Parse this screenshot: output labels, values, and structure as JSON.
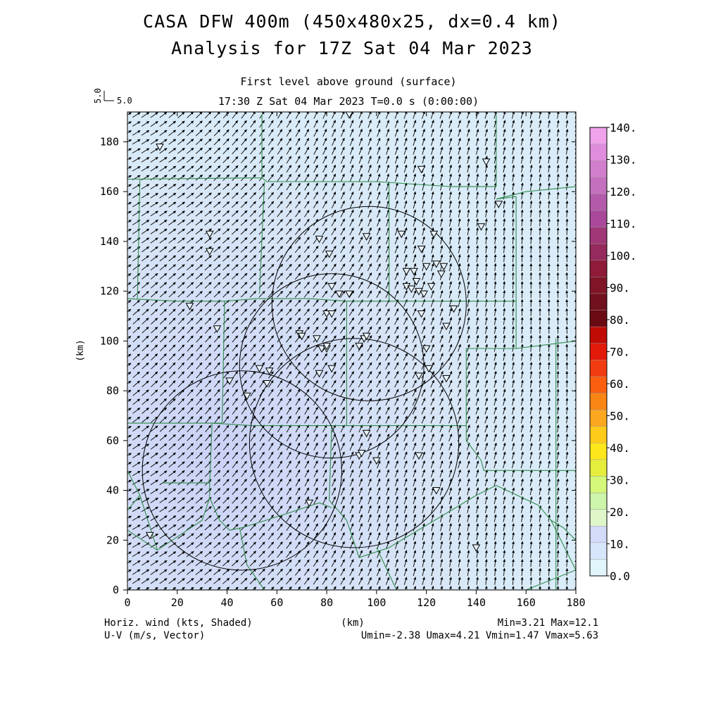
{
  "header": {
    "title_line1": "CASA DFW 400m (450x480x25, dx=0.4 km)",
    "title_line2": "Analysis for 17Z Sat 04 Mar 2023",
    "subtitle_line1": "First level above ground (surface)",
    "subtitle_line2": "17:30 Z Sat 04 Mar 2023    T=0.0 s (0:00:00)"
  },
  "scale_key": {
    "label_vertical": "5.0",
    "label_horizontal": "5.0"
  },
  "footer": {
    "shaded_label": "Horiz. wind (kts, Shaded)",
    "vector_label": "U-V (m/s, Vector)",
    "x_unit": "(km)",
    "minmax": "Min=3.21 Max=12.1",
    "uv_range": "Umin=-2.38 Umax=4.21 Vmin=1.47 Vmax=5.63"
  },
  "chart_data": {
    "type": "heatmap",
    "xlabel": "",
    "ylabel": "(km)",
    "xlim": [
      0,
      180
    ],
    "ylim": [
      0,
      192
    ],
    "x_ticks": [
      "0",
      "20",
      "40",
      "60",
      "80",
      "100",
      "120",
      "140",
      "160",
      "180"
    ],
    "y_ticks": [
      "0",
      "20",
      "40",
      "60",
      "80",
      "100",
      "120",
      "140",
      "160",
      "180"
    ],
    "colorbar": {
      "tick_labels": [
        "0.0",
        "10.",
        "20.",
        "30.",
        "40.",
        "50.",
        "60.",
        "70.",
        "80.",
        "90.",
        "100.",
        "110.",
        "120.",
        "130.",
        "140."
      ],
      "colors": [
        "#e2f5fb",
        "#d7e6fb",
        "#d3dbf8",
        "#dff6c9",
        "#cdf5ab",
        "#d5f77a",
        "#e6ee3d",
        "#fde71c",
        "#fecb1a",
        "#fca81f",
        "#fa8414",
        "#f95f0f",
        "#f13b10",
        "#e11a0a",
        "#c10b05",
        "#6a0a12",
        "#71101e",
        "#801528",
        "#8f1a3a",
        "#952a5c",
        "#a03777",
        "#a9489a",
        "#b35aaa",
        "#c56fbf",
        "#d17ecd",
        "#e08ddd",
        "#f0a2ea"
      ]
    },
    "field_stats": {
      "min": 3.21,
      "max": 12.1,
      "umin": -2.38,
      "umax": 4.21,
      "vmin": 1.47,
      "vmax": 5.63
    },
    "field_colors": {
      "low": "#d7e5f6",
      "high": "#cbd2f6",
      "background": "#d9ecf8"
    },
    "radar_rings_km": [
      {
        "x": 97,
        "y": 115,
        "r": 39
      },
      {
        "x": 82,
        "y": 90,
        "r": 37
      },
      {
        "x": 91,
        "y": 59,
        "r": 42
      },
      {
        "x": 46,
        "y": 48,
        "r": 40
      }
    ],
    "boundary_color": "#2f8a4a",
    "county_boundaries_km": [
      [
        [
          0,
          165
        ],
        [
          52,
          165.5
        ],
        [
          54,
          165.5
        ],
        [
          54,
          191
        ]
      ],
      [
        [
          54,
          165.5
        ],
        [
          56,
          164
        ],
        [
          100,
          164
        ],
        [
          130,
          162
        ],
        [
          148,
          162
        ],
        [
          148,
          191
        ]
      ],
      [
        [
          5,
          165
        ],
        [
          4,
          117
        ]
      ],
      [
        [
          0,
          117
        ],
        [
          20,
          116
        ],
        [
          39,
          116
        ],
        [
          38,
          67
        ],
        [
          0,
          67
        ]
      ],
      [
        [
          39,
          116
        ],
        [
          52,
          117
        ],
        [
          73,
          117
        ],
        [
          88,
          116
        ],
        [
          120,
          116
        ],
        [
          156,
          116
        ],
        [
          156,
          97
        ],
        [
          136,
          97
        ],
        [
          136,
          66
        ],
        [
          120,
          66
        ],
        [
          80,
          66
        ],
        [
          50,
          66
        ],
        [
          34,
          67
        ]
      ],
      [
        [
          55,
          164
        ],
        [
          53,
          119
        ]
      ],
      [
        [
          105,
          164
        ],
        [
          105,
          116
        ]
      ],
      [
        [
          88,
          116
        ],
        [
          88,
          66
        ]
      ],
      [
        [
          156,
          116
        ],
        [
          156,
          158
        ],
        [
          148,
          157
        ],
        [
          160,
          160
        ],
        [
          180,
          162
        ]
      ],
      [
        [
          156,
          97
        ],
        [
          180,
          100
        ]
      ],
      [
        [
          136,
          66
        ],
        [
          136,
          60
        ],
        [
          142,
          52
        ],
        [
          143,
          48
        ],
        [
          180,
          48
        ]
      ],
      [
        [
          34,
          67
        ],
        [
          33,
          43
        ],
        [
          22,
          43
        ],
        [
          14,
          43
        ]
      ],
      [
        [
          33,
          43
        ],
        [
          33,
          37
        ],
        [
          37,
          28
        ],
        [
          41,
          24
        ],
        [
          46,
          25
        ],
        [
          62,
          30
        ],
        [
          77,
          35
        ],
        [
          82,
          33
        ]
      ],
      [
        [
          82,
          66
        ],
        [
          81,
          36
        ],
        [
          88,
          28
        ],
        [
          93,
          13
        ],
        [
          105,
          17
        ],
        [
          140,
          38
        ],
        [
          148,
          42
        ],
        [
          165,
          34
        ],
        [
          170,
          28
        ],
        [
          175,
          25
        ],
        [
          180,
          20
        ]
      ],
      [
        [
          0,
          24
        ],
        [
          12,
          16
        ],
        [
          30,
          28
        ],
        [
          33,
          37
        ]
      ],
      [
        [
          0,
          48
        ],
        [
          5,
          38
        ],
        [
          12,
          16
        ]
      ],
      [
        [
          100,
          17
        ],
        [
          108,
          0
        ]
      ],
      [
        [
          170,
          28
        ],
        [
          180,
          8
        ]
      ],
      [
        [
          160,
          0
        ],
        [
          180,
          8
        ]
      ],
      [
        [
          45,
          25
        ],
        [
          48,
          10
        ],
        [
          55,
          0
        ]
      ],
      [
        [
          5,
          38
        ],
        [
          0,
          32
        ]
      ],
      [
        [
          172,
          101
        ],
        [
          172,
          0
        ]
      ]
    ],
    "station_markers_km": [
      [
        13,
        178
      ],
      [
        89,
        191
      ],
      [
        118,
        169
      ],
      [
        144,
        172
      ],
      [
        149,
        155
      ],
      [
        142,
        146
      ],
      [
        33,
        143
      ],
      [
        33,
        136
      ],
      [
        77,
        141
      ],
      [
        96,
        142
      ],
      [
        110,
        143
      ],
      [
        123,
        143
      ],
      [
        81,
        135
      ],
      [
        118,
        137
      ],
      [
        115,
        128
      ],
      [
        120,
        130
      ],
      [
        124,
        131
      ],
      [
        127,
        130
      ],
      [
        112,
        128
      ],
      [
        116,
        124
      ],
      [
        112,
        122
      ],
      [
        114,
        121
      ],
      [
        117,
        120
      ],
      [
        119,
        119
      ],
      [
        122,
        122
      ],
      [
        126,
        127
      ],
      [
        82,
        122
      ],
      [
        85,
        119
      ],
      [
        89,
        119
      ],
      [
        80,
        111
      ],
      [
        82,
        111
      ],
      [
        118,
        111
      ],
      [
        128,
        106
      ],
      [
        131,
        113
      ],
      [
        25,
        114
      ],
      [
        36,
        105
      ],
      [
        69,
        103
      ],
      [
        70,
        102
      ],
      [
        76,
        101
      ],
      [
        78,
        97
      ],
      [
        80,
        97
      ],
      [
        80,
        98
      ],
      [
        93,
        98
      ],
      [
        95,
        101
      ],
      [
        96,
        102
      ],
      [
        120,
        97
      ],
      [
        121,
        89
      ],
      [
        117,
        86
      ],
      [
        128,
        85
      ],
      [
        77,
        87
      ],
      [
        82,
        89
      ],
      [
        53,
        89
      ],
      [
        57,
        88
      ],
      [
        56,
        83
      ],
      [
        41,
        84
      ],
      [
        48,
        78
      ],
      [
        96,
        63
      ],
      [
        117,
        54
      ],
      [
        93,
        54
      ],
      [
        100,
        52
      ],
      [
        94,
        55
      ],
      [
        124,
        40
      ],
      [
        73,
        35
      ],
      [
        9,
        22
      ],
      [
        140,
        17
      ]
    ]
  }
}
